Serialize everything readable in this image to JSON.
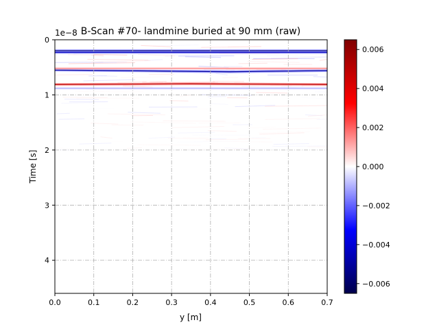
{
  "chart_data": {
    "type": "heatmap",
    "title": "B-Scan #70- landmine buried at 90 mm (raw)",
    "xlabel": "y [m]",
    "ylabel": "Time [s]",
    "y_offset_label": "1e−8",
    "xlim": [
      0.0,
      0.7
    ],
    "ylim": [
      4.6,
      0
    ],
    "x_ticks": [
      0.0,
      0.1,
      0.2,
      0.3,
      0.4,
      0.5,
      0.6,
      0.7
    ],
    "x_tick_labels": [
      "0.0",
      "0.1",
      "0.2",
      "0.3",
      "0.4",
      "0.5",
      "0.6",
      "0.7"
    ],
    "y_ticks": [
      0,
      1,
      2,
      3,
      4
    ],
    "y_tick_labels": [
      "0",
      "1",
      "2",
      "3",
      "4"
    ],
    "grid": true,
    "colormap": "seismic",
    "colorbar": {
      "range": [
        -0.0065,
        0.0065
      ],
      "ticks": [
        -0.006,
        -0.004,
        -0.002,
        0.0,
        0.002,
        0.004,
        0.006
      ],
      "tick_labels": [
        "−0.006",
        "−0.004",
        "−0.002",
        "0.000",
        "0.002",
        "0.004",
        "0.006"
      ]
    },
    "reflections": [
      {
        "time": [
          0.2,
          0.2
        ],
        "y": [
          0.0,
          0.7
        ],
        "amplitude": -0.006
      },
      {
        "time": [
          0.23,
          0.23
        ],
        "y": [
          0.0,
          0.7
        ],
        "amplitude": -0.0045
      },
      {
        "time": [
          0.55,
          0.57,
          0.58,
          0.56
        ],
        "y": [
          0.0,
          0.3,
          0.45,
          0.7
        ],
        "amplitude": -0.005
      },
      {
        "time": [
          0.81,
          0.8,
          0.81
        ],
        "y": [
          0.0,
          0.35,
          0.7
        ],
        "amplitude": 0.005
      },
      {
        "time": [
          0.52,
          0.52
        ],
        "y": [
          0.0,
          0.7
        ],
        "amplitude": 0.0015
      },
      {
        "time": [
          0.88,
          0.88
        ],
        "y": [
          0.0,
          0.7
        ],
        "amplitude": -0.001
      }
    ]
  },
  "colors": {
    "neg_max": "#00004c",
    "neg_mid": "#0000ff",
    "zero": "#ffffff",
    "pos_mid": "#ff0000",
    "pos_max": "#800000",
    "grid": "#b0b0b0"
  }
}
